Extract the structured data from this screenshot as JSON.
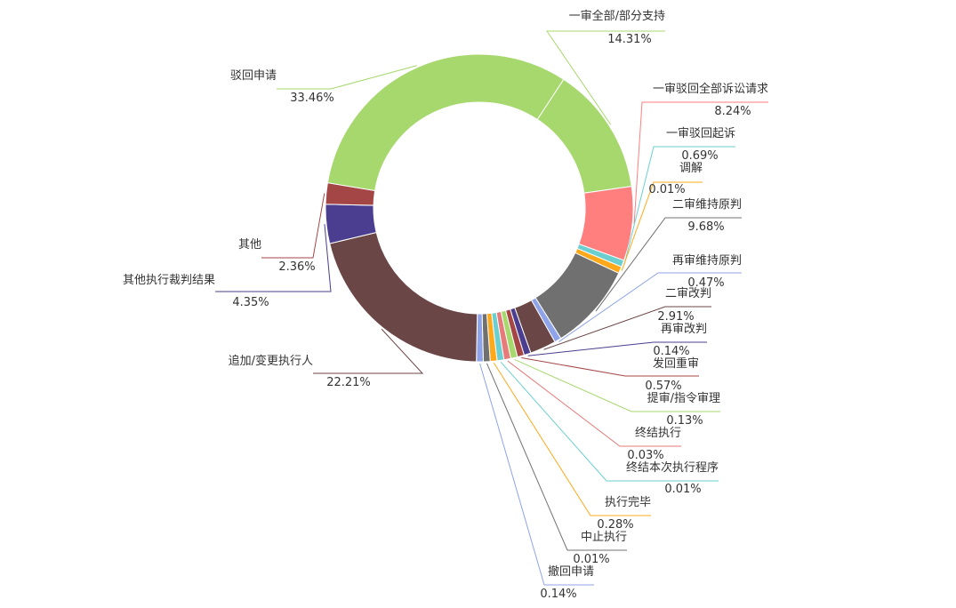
{
  "chart_data": {
    "type": "pie",
    "style": "donut",
    "title": "",
    "slices": [
      {
        "label": "一审全部/部分支持",
        "value": 14.31,
        "display": "14.31%",
        "color": "#a7d86d"
      },
      {
        "label": "一审驳回全部诉讼请求",
        "value": 8.24,
        "display": "8.24%",
        "color": "#ff7f7f"
      },
      {
        "label": "一审驳回起诉",
        "value": 0.69,
        "display": "0.69%",
        "color": "#6ccfcf"
      },
      {
        "label": "调解",
        "value": 0.01,
        "display": "0.01%",
        "color": "#ffa81a"
      },
      {
        "label": "二审维持原判",
        "value": 9.68,
        "display": "9.68%",
        "color": "#707070"
      },
      {
        "label": "再审维持原判",
        "value": 0.47,
        "display": "0.47%",
        "color": "#8fa3e8"
      },
      {
        "label": "二审改判",
        "value": 2.91,
        "display": "2.91%",
        "color": "#6b4646"
      },
      {
        "label": "再审改判",
        "value": 0.14,
        "display": "0.14%",
        "color": "#4b3d8f"
      },
      {
        "label": "发回重审",
        "value": 0.57,
        "display": "0.57%",
        "color": "#a54646"
      },
      {
        "label": "提审/指令审理",
        "value": 0.13,
        "display": "0.13%",
        "color": "#a7d86d"
      },
      {
        "label": "终结执行",
        "value": 0.03,
        "display": "0.03%",
        "color": "#e77a7a"
      },
      {
        "label": "终结本次执行程序",
        "value": 0.01,
        "display": "0.01%",
        "color": "#6ccfcf"
      },
      {
        "label": "执行完毕",
        "value": 0.28,
        "display": "0.28%",
        "color": "#ffa81a"
      },
      {
        "label": "中止执行",
        "value": 0.01,
        "display": "0.01%",
        "color": "#707070"
      },
      {
        "label": "撤回申请",
        "value": 0.14,
        "display": "0.14%",
        "color": "#8fa3e8"
      },
      {
        "label": "追加/变更执行人",
        "value": 22.21,
        "display": "22.21%",
        "color": "#6b4646"
      },
      {
        "label": "其他执行裁判结果",
        "value": 4.35,
        "display": "4.35%",
        "color": "#4b3d8f"
      },
      {
        "label": "其他",
        "value": 2.36,
        "display": "2.36%",
        "color": "#a54646"
      },
      {
        "label": "驳回申请",
        "value": 33.46,
        "display": "33.46%",
        "color": "#a7d86d"
      }
    ]
  }
}
